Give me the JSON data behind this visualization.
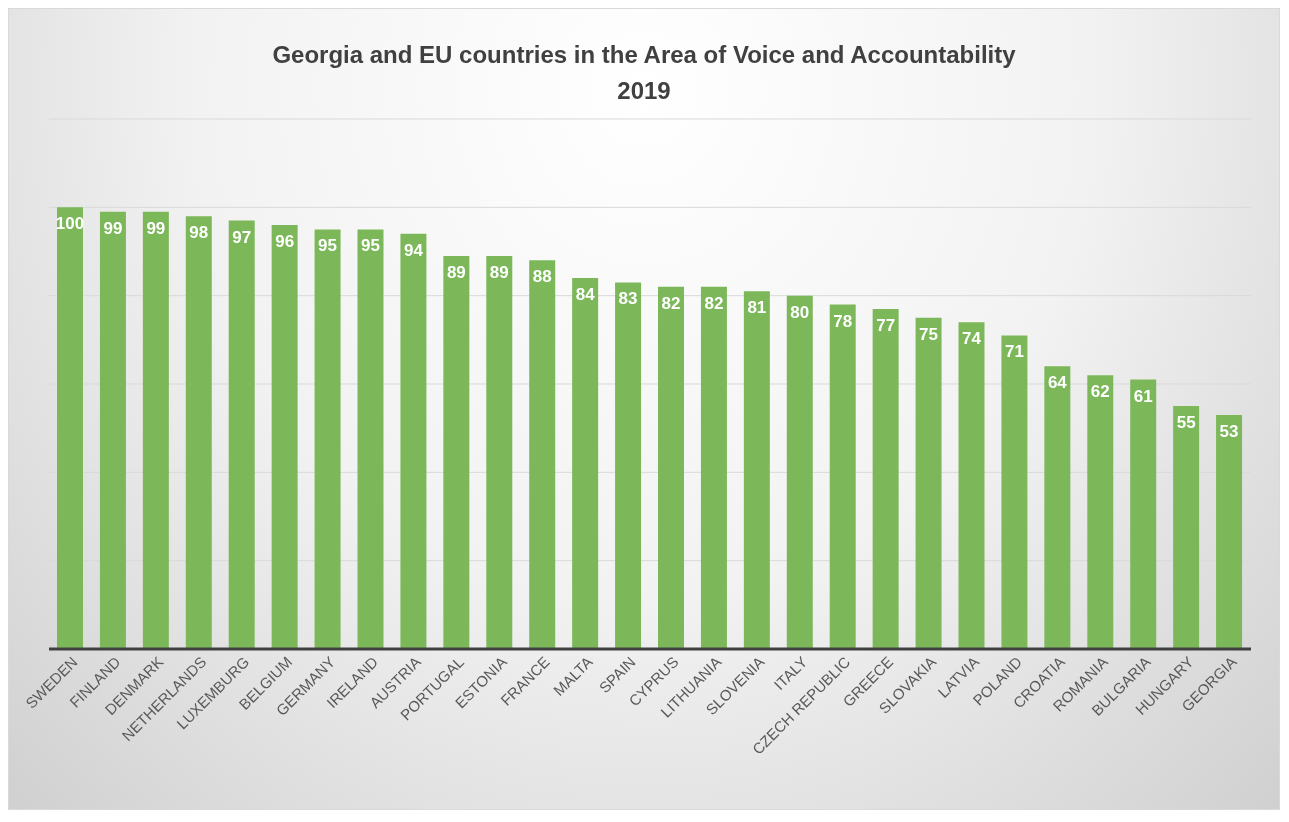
{
  "chart_data": {
    "type": "bar",
    "title": "Georgia and EU countries in the Area of Voice and Accountability\n2019",
    "categories": [
      "SWEDEN",
      "FINLAND",
      "DENMARK",
      "NETHERLANDS",
      "LUXEMBURG",
      "BELGIUM",
      "GERMANY",
      "IRELAND",
      "AUSTRIA",
      "PORTUGAL",
      "ESTONIA",
      "FRANCE",
      "MALTA",
      "SPAIN",
      "CYPRUS",
      "LITHUANIA",
      "SLOVENIA",
      "ITALY",
      "CZECH REPUBLIC",
      "GREECE",
      "SLOVAKIA",
      "LATVIA",
      "POLAND",
      "CROATIA",
      "ROMANIA",
      "BULGARIA",
      "HUNGARY",
      "GEORGIA"
    ],
    "values": [
      100,
      99,
      99,
      98,
      97,
      96,
      95,
      95,
      94,
      89,
      89,
      88,
      84,
      83,
      82,
      82,
      81,
      80,
      78,
      77,
      75,
      74,
      71,
      64,
      62,
      61,
      55,
      53
    ],
    "color": "#7cb85a",
    "ylim": [
      0,
      120
    ],
    "yticks": [
      {
        "value": 0,
        "label": null
      },
      {
        "value": 20,
        "label": null
      },
      {
        "value": 40,
        "label": null
      },
      {
        "value": 60,
        "label": null
      },
      {
        "value": 80,
        "label": null
      },
      {
        "value": 100,
        "label": null
      },
      {
        "value": 120,
        "label": null
      }
    ],
    "grid": "y",
    "tick_labels": "x",
    "data_labels": true
  }
}
